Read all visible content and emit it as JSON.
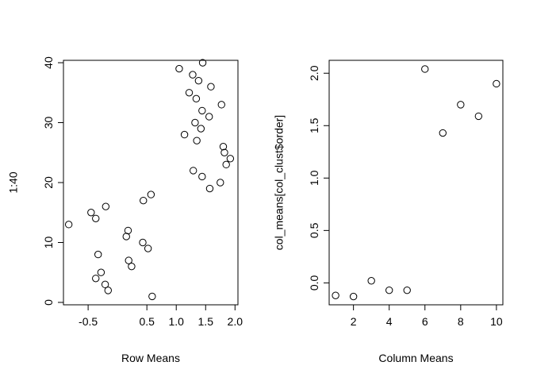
{
  "chart_data": [
    {
      "type": "scatter",
      "xlabel": "Row Means",
      "ylabel": "1:40",
      "xlim": [
        -0.92,
        2.05
      ],
      "ylim": [
        -0.4,
        40.4
      ],
      "xticks": [
        -0.5,
        0.5,
        1.0,
        1.5,
        2.0
      ],
      "xtick_labels": [
        "-0.5",
        "0.5",
        "1.0",
        "1.5",
        "2.0"
      ],
      "yticks": [
        0,
        10,
        20,
        30,
        40
      ],
      "ytick_labels": [
        "0",
        "10",
        "20",
        "30",
        "40"
      ],
      "points": [
        [
          0.59,
          1
        ],
        [
          -0.16,
          2
        ],
        [
          -0.21,
          3
        ],
        [
          -0.37,
          4
        ],
        [
          -0.28,
          5
        ],
        [
          0.24,
          6
        ],
        [
          0.19,
          7
        ],
        [
          -0.33,
          8
        ],
        [
          0.52,
          9
        ],
        [
          0.43,
          10
        ],
        [
          0.15,
          11
        ],
        [
          0.18,
          12
        ],
        [
          -0.83,
          13
        ],
        [
          -0.37,
          14
        ],
        [
          -0.45,
          15
        ],
        [
          -0.2,
          16
        ],
        [
          0.44,
          17
        ],
        [
          0.57,
          18
        ],
        [
          1.57,
          19
        ],
        [
          1.75,
          20
        ],
        [
          1.44,
          21
        ],
        [
          1.29,
          22
        ],
        [
          1.85,
          23
        ],
        [
          1.92,
          24
        ],
        [
          1.82,
          25
        ],
        [
          1.8,
          26
        ],
        [
          1.35,
          27
        ],
        [
          1.14,
          28
        ],
        [
          1.42,
          29
        ],
        [
          1.32,
          30
        ],
        [
          1.56,
          31
        ],
        [
          1.44,
          32
        ],
        [
          1.77,
          33
        ],
        [
          1.34,
          34
        ],
        [
          1.22,
          35
        ],
        [
          1.59,
          36
        ],
        [
          1.38,
          37
        ],
        [
          1.28,
          38
        ],
        [
          1.05,
          39
        ],
        [
          1.45,
          40
        ]
      ]
    },
    {
      "type": "scatter",
      "xlabel": "Column Means",
      "ylabel": "col_means[col_clust$order]",
      "xlim": [
        0.64,
        10.36
      ],
      "ylim": [
        -0.209,
        2.123
      ],
      "xticks": [
        2,
        4,
        6,
        8,
        10
      ],
      "xtick_labels": [
        "2",
        "4",
        "6",
        "8",
        "10"
      ],
      "yticks": [
        0.0,
        0.5,
        1.0,
        1.5,
        2.0
      ],
      "ytick_labels": [
        "0.0",
        "0.5",
        "1.0",
        "1.5",
        "2.0"
      ],
      "points": [
        [
          1,
          -0.12
        ],
        [
          2,
          -0.13
        ],
        [
          3,
          0.02
        ],
        [
          4,
          -0.07
        ],
        [
          5,
          -0.07
        ],
        [
          6,
          2.04
        ],
        [
          7,
          1.43
        ],
        [
          8,
          1.7
        ],
        [
          9,
          1.59
        ],
        [
          10,
          1.9
        ]
      ]
    }
  ]
}
